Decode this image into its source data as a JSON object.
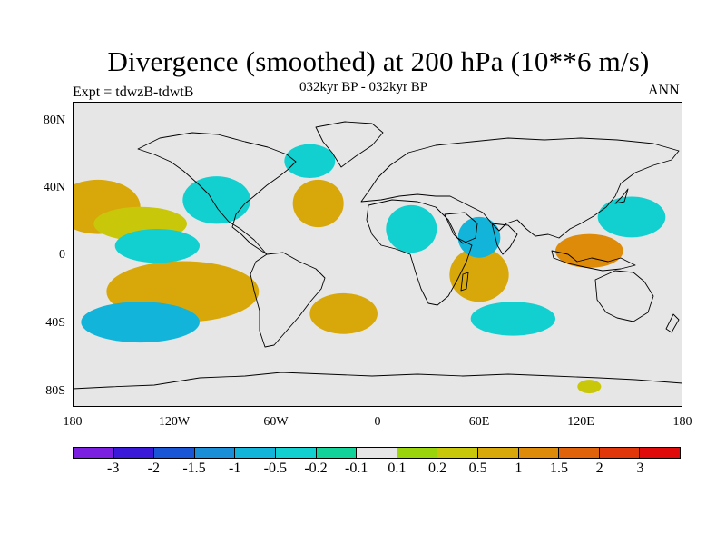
{
  "title": "Divergence (smoothed) at 200 hPa (10**6 m/s)",
  "subtitle": "032kyr BP - 032kyr BP",
  "left_label": "Expt = tdwzB-tdwtB",
  "right_label": "ANN",
  "chart_data": {
    "type": "heatmap",
    "title": "Divergence (smoothed) at 200 hPa (10**6 m/s)",
    "subtitle": "032kyr BP - 032kyr BP",
    "left_string": "Expt = tdwzB-tdwtB",
    "right_string": "ANN",
    "projection": "cylindrical-equidistant",
    "xlim": [
      -180,
      180
    ],
    "ylim": [
      -90,
      90
    ],
    "x_ticks": [
      {
        "value": -180,
        "label": "180"
      },
      {
        "value": -120,
        "label": "120W"
      },
      {
        "value": -60,
        "label": "60W"
      },
      {
        "value": 0,
        "label": "0"
      },
      {
        "value": 60,
        "label": "60E"
      },
      {
        "value": 120,
        "label": "120E"
      },
      {
        "value": 180,
        "label": "180"
      }
    ],
    "y_ticks": [
      {
        "value": 80,
        "label": "80N"
      },
      {
        "value": 40,
        "label": "40N"
      },
      {
        "value": 0,
        "label": "0"
      },
      {
        "value": -40,
        "label": "40S"
      },
      {
        "value": -80,
        "label": "80S"
      }
    ],
    "colorbar": {
      "labels": [
        "-3",
        "-2",
        "-1.5",
        "-1",
        "-0.5",
        "-0.2",
        "-0.1",
        "0.1",
        "0.2",
        "0.5",
        "1",
        "1.5",
        "2",
        "3"
      ],
      "colors": [
        "#7b1fe0",
        "#3a1ad8",
        "#1a55d6",
        "#1a8ed6",
        "#13b4d9",
        "#12cfd0",
        "#12d49a",
        "#e6e6e6",
        "#9ad40a",
        "#c9c70a",
        "#d8a80a",
        "#de8b0a",
        "#e0620a",
        "#e0360a",
        "#e00a0a"
      ]
    },
    "features": [
      {
        "name": "north-pacific-positive",
        "lon": -165,
        "lat": 28,
        "w": 50,
        "h": 16,
        "level": "0.5"
      },
      {
        "name": "central-pacific-band-positive",
        "lon": -140,
        "lat": 18,
        "w": 55,
        "h": 10,
        "level": "0.2"
      },
      {
        "name": "south-pacific-positive",
        "lon": -115,
        "lat": -22,
        "w": 90,
        "h": 18,
        "level": "0.5"
      },
      {
        "name": "east-pacific-negative",
        "lon": -130,
        "lat": 5,
        "w": 50,
        "h": 10,
        "level": "-0.2"
      },
      {
        "name": "southeast-pacific-negative",
        "lon": -140,
        "lat": -40,
        "w": 70,
        "h": 12,
        "level": "-0.5"
      },
      {
        "name": "north-america-negative",
        "lon": -95,
        "lat": 32,
        "w": 40,
        "h": 14,
        "level": "-0.2"
      },
      {
        "name": "north-atlantic-negative",
        "lon": -40,
        "lat": 55,
        "w": 30,
        "h": 10,
        "level": "-0.2"
      },
      {
        "name": "atlantic-positive",
        "lon": -35,
        "lat": 30,
        "w": 30,
        "h": 14,
        "level": "0.5"
      },
      {
        "name": "south-atlantic-positive",
        "lon": -20,
        "lat": -35,
        "w": 40,
        "h": 12,
        "level": "0.5"
      },
      {
        "name": "africa-negative",
        "lon": 20,
        "lat": 15,
        "w": 30,
        "h": 14,
        "level": "-0.2"
      },
      {
        "name": "indian-ocean-positive",
        "lon": 60,
        "lat": -12,
        "w": 35,
        "h": 16,
        "level": "0.5"
      },
      {
        "name": "arabia-negative",
        "lon": 60,
        "lat": 10,
        "w": 25,
        "h": 12,
        "level": "-0.5"
      },
      {
        "name": "maritime-continent-positive",
        "lon": 125,
        "lat": 2,
        "w": 40,
        "h": 10,
        "level": "1"
      },
      {
        "name": "west-pacific-negative",
        "lon": 150,
        "lat": 22,
        "w": 40,
        "h": 12,
        "level": "-0.2"
      },
      {
        "name": "southern-indian-negative",
        "lon": 80,
        "lat": -38,
        "w": 50,
        "h": 10,
        "level": "-0.2"
      },
      {
        "name": "antarctic-positive",
        "lon": 125,
        "lat": -78,
        "w": 14,
        "h": 4,
        "level": "0.2"
      }
    ]
  }
}
